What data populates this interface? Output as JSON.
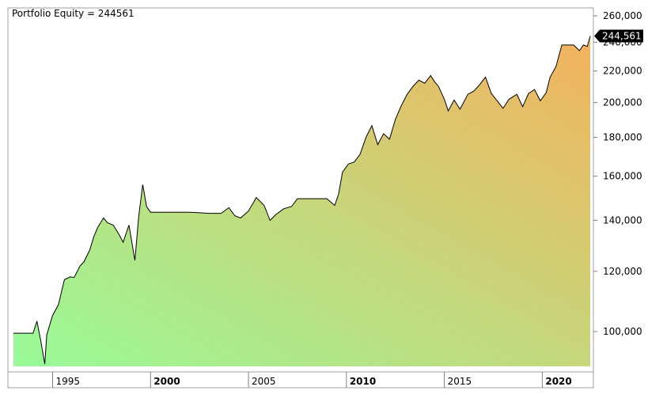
{
  "title": "Portfolio Equity = 244561",
  "last_value_label": "244,561",
  "chart_data": {
    "type": "area",
    "title": "Portfolio Equity = 244561",
    "log_scale": true,
    "ylim": [
      90000,
      265000
    ],
    "xlim": [
      1993.0,
      2022.45
    ],
    "y_ticks": [
      100000,
      120000,
      140000,
      160000,
      180000,
      200000,
      220000,
      240000,
      260000
    ],
    "y_tick_labels": [
      "100,000",
      "120,000",
      "140,000",
      "160,000",
      "180,000",
      "200,000",
      "220,000",
      "240,000",
      "260,000"
    ],
    "x_ticks": [
      1995,
      2000,
      2005,
      2010,
      2015,
      2020
    ],
    "x_tick_labels": [
      "1995",
      "2000",
      "2005",
      "2010",
      "2015",
      "2020"
    ],
    "x_tick_bold": [
      false,
      true,
      false,
      true,
      false,
      true
    ],
    "fill_gradient": [
      "#98fb98",
      "#f4b25e"
    ],
    "line_color": "#000000",
    "series": [
      {
        "x": [
          1993.0,
          1994.0,
          1994.2,
          1994.4,
          1994.6,
          1994.7,
          1994.9,
          1995.0,
          1995.3,
          1995.6,
          1995.9,
          1996.1,
          1996.4,
          1996.6,
          1996.9,
          1997.1,
          1997.3,
          1997.6,
          1997.8,
          1998.1,
          1998.4,
          1998.6,
          1998.9,
          1999.2,
          1999.4,
          1999.6,
          1999.8,
          2000.0,
          2000.2,
          2001.0,
          2002.0,
          2003.0,
          2003.6,
          2004.0,
          2004.3,
          2004.6,
          2005.0,
          2005.4,
          2005.8,
          2006.1,
          2006.4,
          2006.8,
          2007.2,
          2007.5,
          2007.8,
          2008.0,
          2008.5,
          2009.0,
          2009.4,
          2009.6,
          2009.8,
          2010.1,
          2010.4,
          2010.7,
          2011.0,
          2011.3,
          2011.6,
          2011.9,
          2012.2,
          2012.5,
          2012.8,
          2013.1,
          2013.4,
          2013.7,
          2014.0,
          2014.3,
          2014.5,
          2014.7,
          2015.0,
          2015.2,
          2015.5,
          2015.8,
          2016.2,
          2016.5,
          2016.8,
          2017.1,
          2017.4,
          2017.7,
          2018.0,
          2018.3,
          2018.7,
          2019.0,
          2019.3,
          2019.6,
          2019.9,
          2020.2,
          2020.4,
          2020.7,
          2021.0,
          2021.3,
          2021.6,
          2021.9,
          2022.1,
          2022.3,
          2022.45
        ],
        "y": [
          99500,
          99500,
          103200,
          97000,
          90600,
          99000,
          103000,
          105000,
          108500,
          117000,
          118000,
          117800,
          122000,
          123500,
          128000,
          133200,
          137000,
          141000,
          139000,
          138000,
          134000,
          131000,
          138000,
          124000,
          142000,
          156000,
          146000,
          143500,
          143500,
          143500,
          143500,
          143000,
          143000,
          145500,
          142000,
          141000,
          144000,
          150000,
          146500,
          140000,
          142500,
          145000,
          146000,
          149500,
          149500,
          149500,
          149500,
          149500,
          146500,
          151500,
          162000,
          166000,
          167000,
          171000,
          180000,
          186500,
          176000,
          182000,
          179000,
          190000,
          198000,
          205000,
          210000,
          214000,
          212000,
          217000,
          213000,
          210000,
          202000,
          195000,
          201500,
          196000,
          205000,
          207000,
          211000,
          216000,
          205500,
          201000,
          196500,
          202000,
          205000,
          197500,
          205500,
          208000,
          201000,
          206000,
          216000,
          223000,
          238000,
          238000,
          238000,
          234000,
          238000,
          237000,
          244561
        ]
      }
    ]
  }
}
